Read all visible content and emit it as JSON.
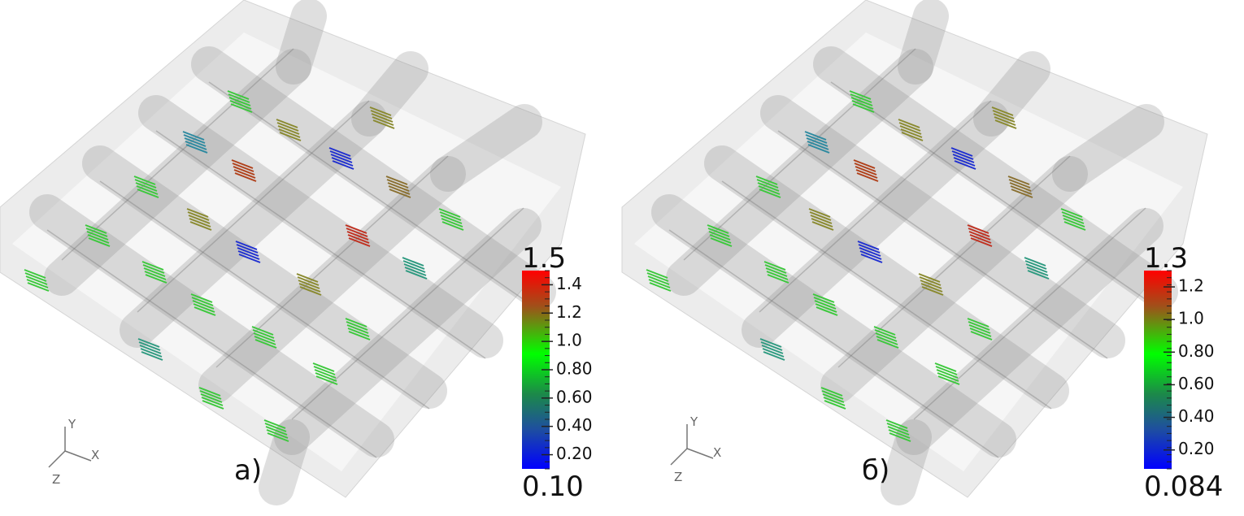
{
  "panels": [
    {
      "label": "а)",
      "colorbar": {
        "max": "1.5",
        "min": "0.10",
        "ticks": [
          "1.4",
          "1.2",
          "1.0",
          "0.80",
          "0.60",
          "0.40",
          "0.20"
        ]
      },
      "axes": {
        "x": "X",
        "y": "Y",
        "z": "Z"
      }
    },
    {
      "label": "б)",
      "colorbar": {
        "max": "1.3",
        "min": "0.084",
        "ticks": [
          "1.2",
          "1.0",
          "0.80",
          "0.60",
          "0.40",
          "0.20"
        ]
      },
      "axes": {
        "x": "X",
        "y": "Y",
        "z": "Z"
      }
    }
  ]
}
